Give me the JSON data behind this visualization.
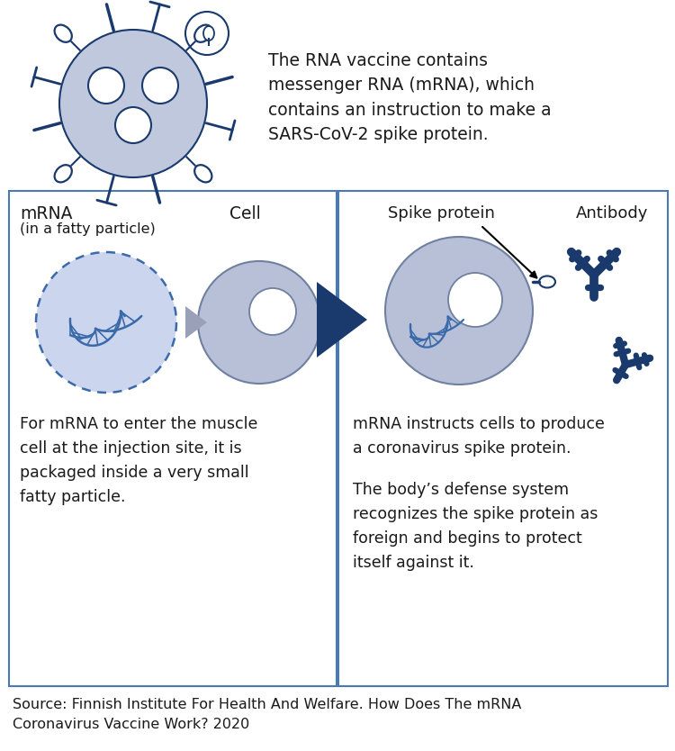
{
  "bg_color": "#ffffff",
  "border_color": "#4a7ab5",
  "dark_blue": "#1a3a6e",
  "medium_blue": "#3a6aaa",
  "cell_fill": "#b8c0d8",
  "cell_outline": "#7080a0",
  "mrna_fill": "#ccd5ee",
  "virus_fill": "#c0c8de",
  "source_text": "Source: Finnish Institute For Health And Welfare. How Does The mRNA\nCoronavirus Vaccine Work? 2020",
  "top_text": "The RNA vaccine contains\nmessenger RNA (mRNA), which\ncontains an instruction to make a\nSARS-CoV-2 spike protein.",
  "left_label1": "mRNA",
  "left_label2": "(in a fatty particle)",
  "left_label3": "Cell",
  "left_body": "For mRNA to enter the muscle\ncell at the injection site, it is\npackaged inside a very small\nfatty particle.",
  "right_label1": "Spike protein",
  "right_label2": "Antibody",
  "right_body1": "mRNA instructs cells to produce\na coronavirus spike protein.",
  "right_body2": "The body’s defense system\nrecognizes the spike protein as\nforeign and begins to protect\nitself against it."
}
